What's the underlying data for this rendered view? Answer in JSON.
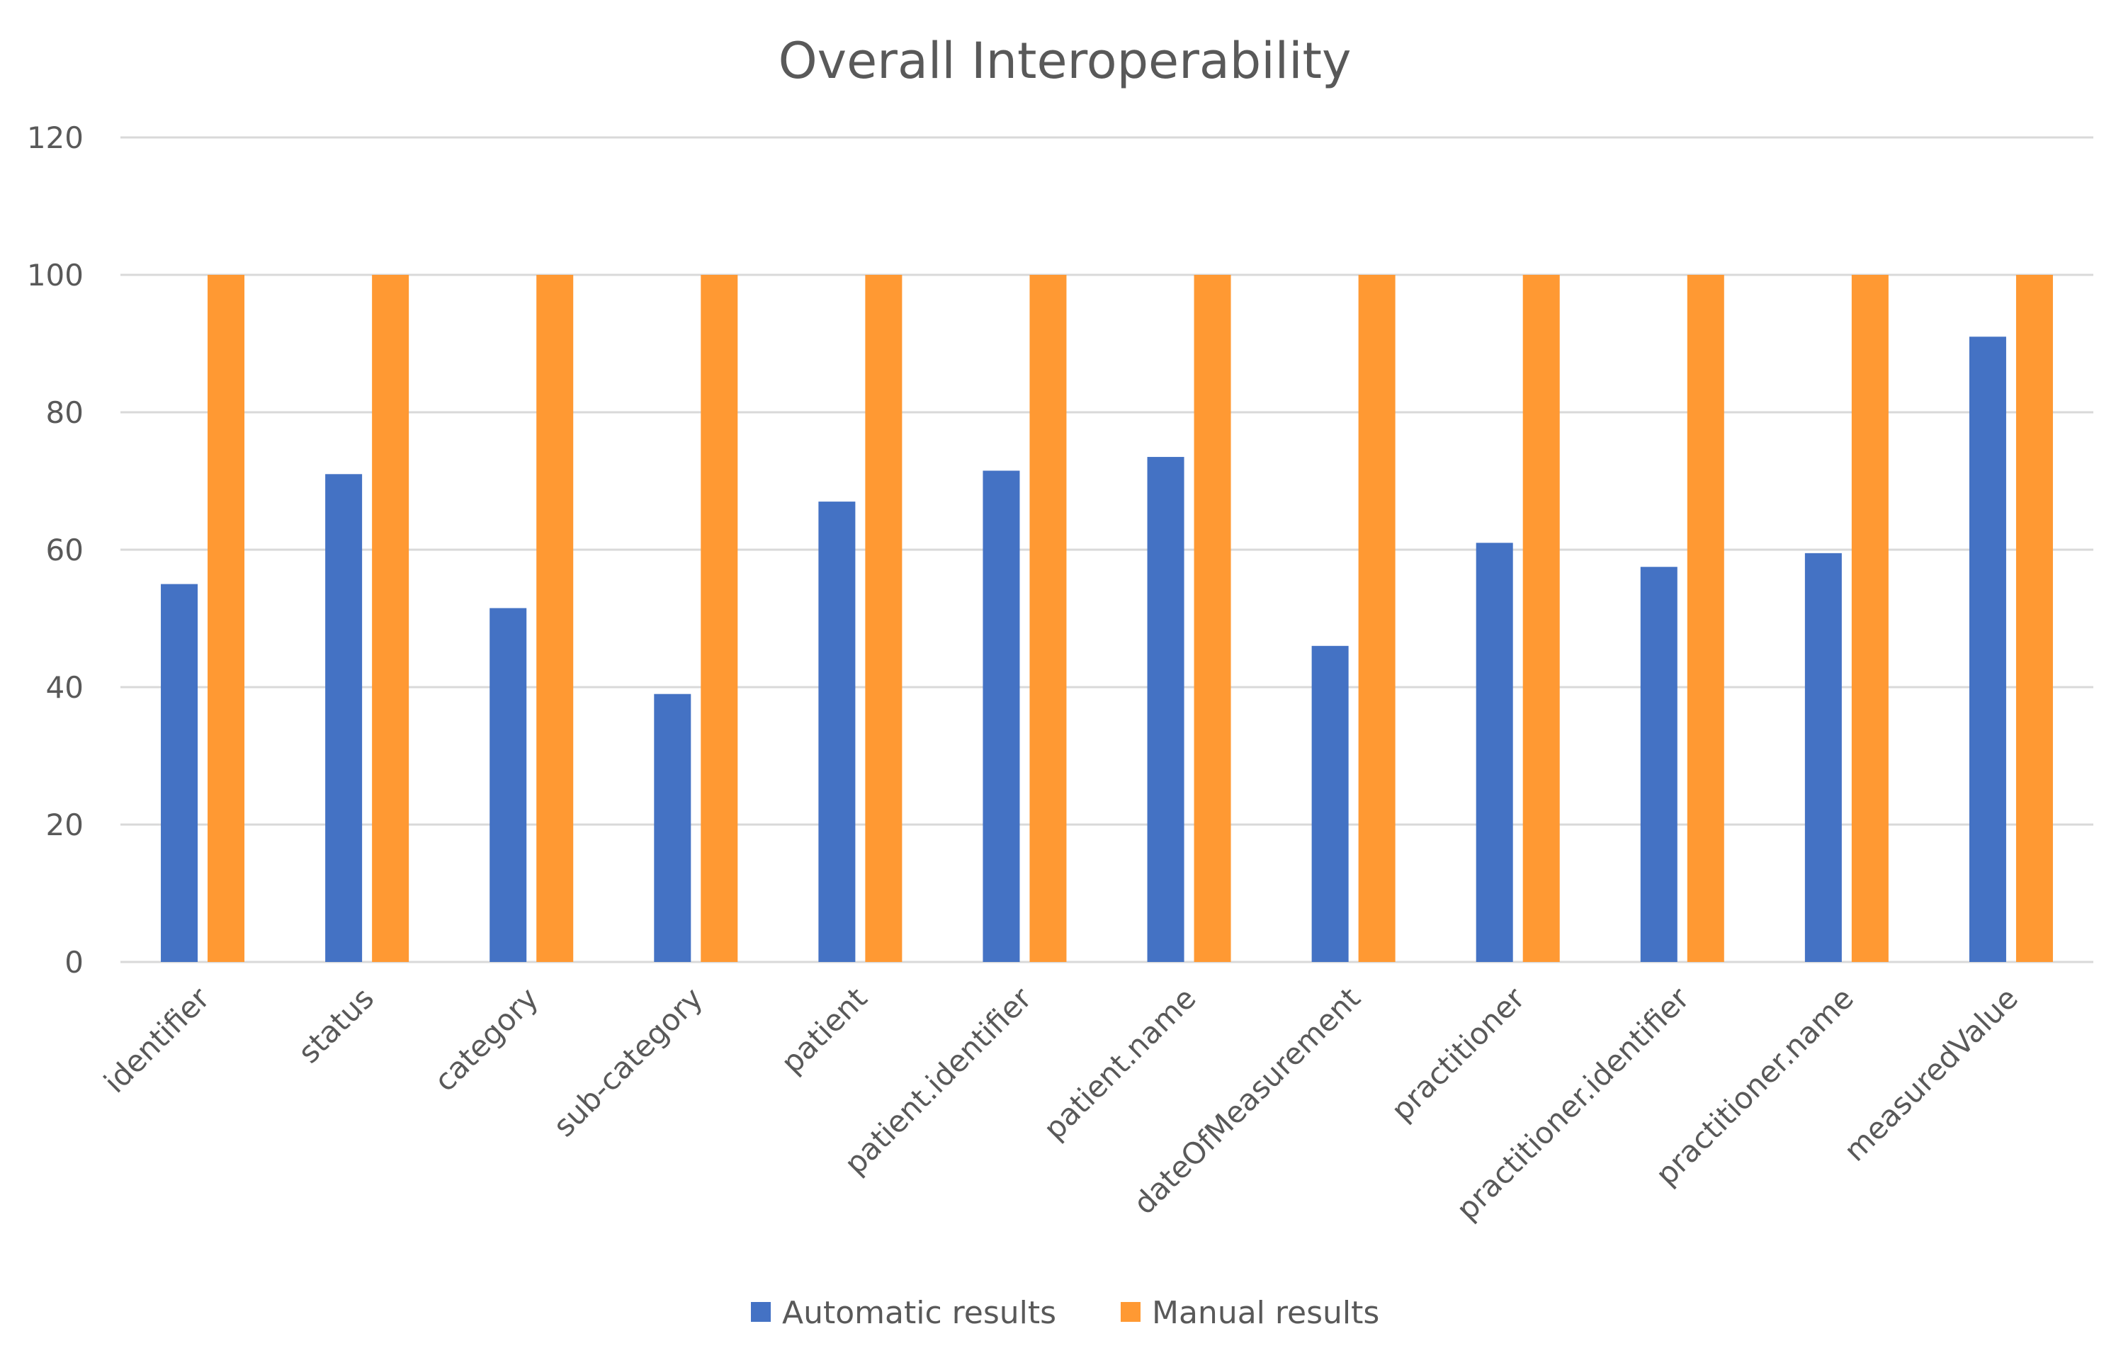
{
  "chart_data": {
    "type": "bar",
    "title": "Overall Interoperability",
    "xlabel": "",
    "ylabel": "",
    "ylim": [
      0,
      120
    ],
    "yticks": [
      0,
      20,
      40,
      60,
      80,
      100,
      120
    ],
    "grid": true,
    "legend_position": "bottom",
    "categories": [
      "identifier",
      "status",
      "category",
      "sub-category",
      "patient",
      "patient.identifier",
      "patient.name",
      "dateOfMeasurement",
      "practitioner",
      "practitioner.identifier",
      "practitioner.name",
      "measuredValue"
    ],
    "series": [
      {
        "name": "Automatic results",
        "color": "#4472C4",
        "values": [
          55,
          71,
          51.5,
          39,
          67,
          71.5,
          73.5,
          46,
          61,
          57.5,
          59.5,
          91
        ]
      },
      {
        "name": "Manual results",
        "color": "#FF9933",
        "values": [
          100,
          100,
          100,
          100,
          100,
          100,
          100,
          100,
          100,
          100,
          100,
          100
        ]
      }
    ]
  }
}
